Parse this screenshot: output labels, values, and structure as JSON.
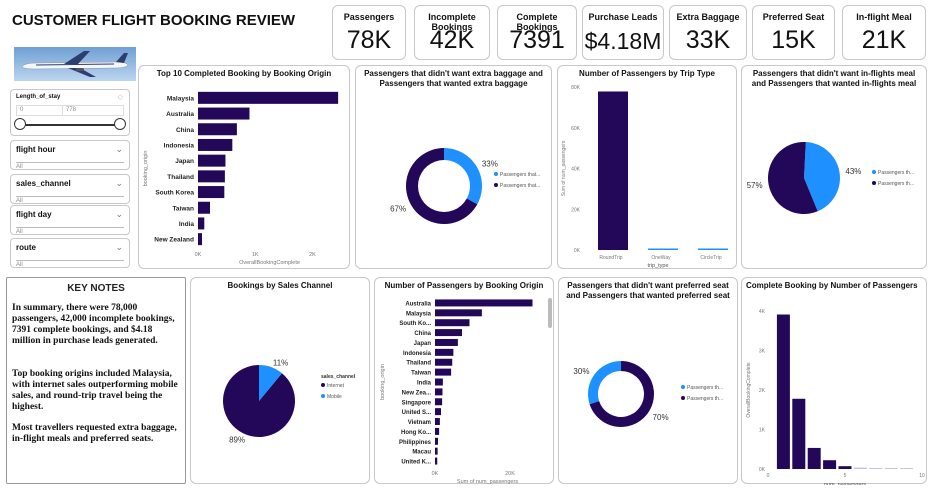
{
  "header": {
    "title": "CUSTOMER FLIGHT BOOKING REVIEW"
  },
  "kpis": [
    {
      "label": "Passengers",
      "value": "78K"
    },
    {
      "label": "Incomplete Bookings",
      "value": "42K"
    },
    {
      "label": "Complete Bookings",
      "value": "7391"
    },
    {
      "label": "Purchase Leads",
      "value": "$4.18M"
    },
    {
      "label": "Extra Baggage",
      "value": "33K"
    },
    {
      "label": "Preferred Seat",
      "value": "15K"
    },
    {
      "label": "In-flight Meal",
      "value": "21K"
    }
  ],
  "filters": {
    "length_of_stay": {
      "label": "Length_of_stay",
      "min": "0",
      "max": "778"
    },
    "slicers": [
      {
        "label": "flight hour",
        "value": "All"
      },
      {
        "label": "sales_channel",
        "value": "All"
      },
      {
        "label": "flight day",
        "value": "All"
      },
      {
        "label": "route",
        "value": "All"
      }
    ]
  },
  "notes": {
    "title": "KEY NOTES",
    "paragraphs": [
      "In summary, there were 78,000 passengers, 42,000 incomplete bookings, 7391 complete bookings, and $4.18 million in purchase leads generated.",
      "Top booking origins included Malaysia, with internet sales outperforming mobile sales, and round-trip travel being the highest.",
      " Most travellers requested extra baggage, in-flight meals and preferred seats."
    ]
  },
  "colors": {
    "dark": "#23085a",
    "light": "#1e90ff",
    "border": "#c8c8c8"
  },
  "chart_data": [
    {
      "id": "top10",
      "type": "bar",
      "orientation": "horizontal",
      "title": "Top 10 Completed Booking by Booking Origin",
      "ylabel": "booking_origin",
      "xlabel": "OverallBookingComplete",
      "categories": [
        "Malaysia",
        "Australia",
        "China",
        "Indonesia",
        "Japan",
        "Thailand",
        "South Korea",
        "Taiwan",
        "India",
        "New Zealand"
      ],
      "values": [
        2450,
        900,
        680,
        600,
        480,
        470,
        460,
        210,
        110,
        70
      ],
      "xticks": [
        "0K",
        "1K",
        "2K"
      ],
      "xlim": [
        0,
        2500
      ]
    },
    {
      "id": "baggage",
      "type": "pie",
      "donut": true,
      "title": "Passengers that didn't want extra baggage and Passengers that wanted extra baggage",
      "series": [
        {
          "name": "Passengers that...",
          "value": 33,
          "label": "33%"
        },
        {
          "name": "Passengers that...",
          "value": 67,
          "label": "67%"
        }
      ]
    },
    {
      "id": "triptype",
      "type": "bar",
      "title": "Number of Passengers by Trip Type",
      "ylabel": "Sum of num_passengers",
      "xlabel": "trip_type",
      "categories": [
        "RoundTrip",
        "OneWay",
        "CircleTrip"
      ],
      "values": [
        77800,
        700,
        400
      ],
      "yticks": [
        "0K",
        "20K",
        "40K",
        "60K",
        "80K"
      ],
      "ylim": [
        0,
        80000
      ]
    },
    {
      "id": "meal",
      "type": "pie",
      "donut": false,
      "title": "Passengers that didn't want in-flights meal and Passengers that wanted in-flights meal",
      "series": [
        {
          "name": "Passengers th...",
          "value": 43,
          "label": "43%"
        },
        {
          "name": "Passengers th...",
          "value": 57,
          "label": "57%"
        }
      ]
    },
    {
      "id": "saleschannel",
      "type": "pie",
      "donut": false,
      "title": "Bookings by Sales Channel",
      "legend_title": "sales_channel",
      "series": [
        {
          "name": "Internet",
          "value": 89,
          "label": "89%"
        },
        {
          "name": "Mobile",
          "value": 11,
          "label": "11%"
        }
      ]
    },
    {
      "id": "origin",
      "type": "bar",
      "orientation": "horizontal",
      "title": "Number of Passengers by Booking Origin",
      "ylabel": "booking_origin",
      "xlabel": "Sum of num_passengers",
      "categories": [
        "Australia",
        "Malaysia",
        "South Ko...",
        "China",
        "Japan",
        "Indonesia",
        "Thailand",
        "Taiwan",
        "India",
        "New Zea...",
        "Singapore",
        "United S...",
        "Vietnam",
        "Hong Ko...",
        "Philippines",
        "Macau",
        "United K..."
      ],
      "values": [
        26000,
        12500,
        9200,
        7200,
        6100,
        4900,
        4600,
        4300,
        2100,
        2000,
        1900,
        1600,
        1300,
        1100,
        800,
        700,
        600
      ],
      "xticks": [
        "0K",
        "20K"
      ],
      "xlim": [
        0,
        28000
      ]
    },
    {
      "id": "seat",
      "type": "pie",
      "donut": true,
      "title": "Passengers that didn't want preferred seat and Passengers that wanted preferred seat",
      "series": [
        {
          "name": "Passengers th...",
          "value": 30,
          "label": "30%"
        },
        {
          "name": "Passengers th...",
          "value": 70,
          "label": "70%"
        }
      ]
    },
    {
      "id": "numpass",
      "type": "bar",
      "title": "Complete Booking by Number of Passengers",
      "ylabel": "OverallBookingComplete",
      "xlabel": "num_passengers",
      "x": [
        1,
        2,
        3,
        4,
        5,
        6,
        7,
        8,
        9
      ],
      "values": [
        4400,
        2000,
        600,
        250,
        80,
        40,
        20,
        15,
        10
      ],
      "yticks": [
        "0K",
        "1K",
        "2K",
        "3K",
        "4K"
      ],
      "xticks": [
        "0",
        "5",
        "10"
      ],
      "ylim": [
        0,
        4500
      ],
      "xlim": [
        0,
        10
      ]
    }
  ]
}
